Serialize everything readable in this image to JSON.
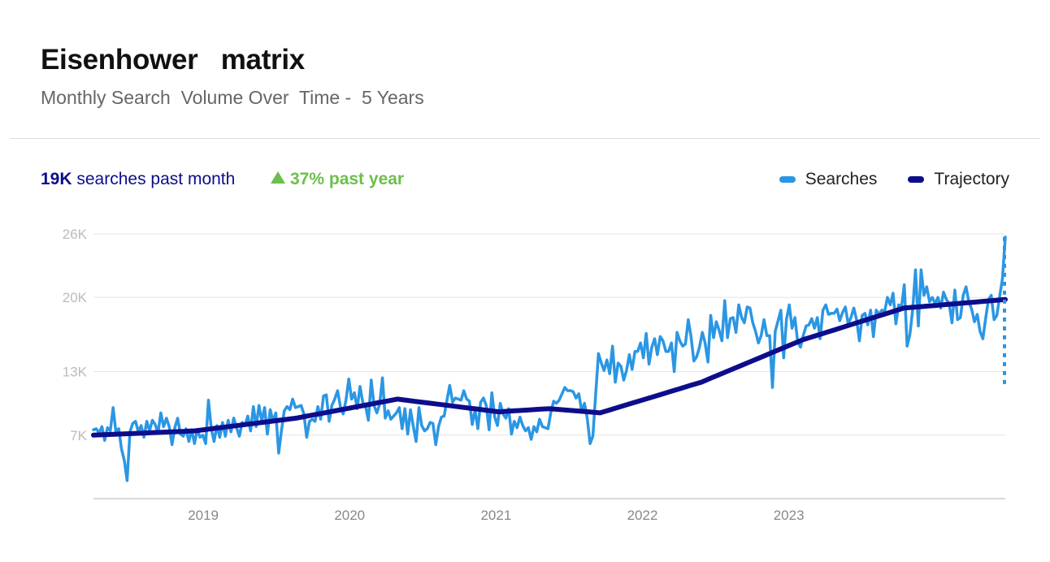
{
  "header": {
    "title": "Eisenhower   matrix",
    "subtitle": "Monthly Search  Volume Over  Time -  5 Years"
  },
  "stats": {
    "volume_value": "19K",
    "volume_label": "searches past month",
    "growth_value": "37%",
    "growth_label": "past year",
    "growth_icon": "triangle-up-icon"
  },
  "legend": {
    "searches": "Searches",
    "trajectory": "Trajectory"
  },
  "colors": {
    "searches": "#2b96e4",
    "trajectory": "#0d0d8c",
    "growth": "#6cbf4a",
    "grid": "#e6e6e6"
  },
  "chart_data": {
    "type": "line",
    "x_start": "2018-09",
    "x_step": "1 week",
    "x_ticks": [
      "2019",
      "2020",
      "2021",
      "2022",
      "2023"
    ],
    "y_ticks": [
      {
        "value": 7000,
        "label": "7K"
      },
      {
        "value": 13000,
        "label": "13K"
      },
      {
        "value": 20000,
        "label": "20K"
      },
      {
        "value": 26000,
        "label": "26K"
      }
    ],
    "ylim": [
      1000,
      26000
    ],
    "grid": true,
    "legend_position": "top-right",
    "series": [
      {
        "name": "Searches",
        "values": [
          7500,
          7600,
          7200,
          7800,
          6500,
          7700,
          7400,
          9600,
          7300,
          7600,
          5700,
          4600,
          2700,
          7300,
          8100,
          8300,
          7300,
          7900,
          6800,
          8300,
          7400,
          8400,
          8000,
          7200,
          9100,
          7800,
          8600,
          7800,
          6100,
          7700,
          8600,
          7100,
          6900,
          7600,
          6400,
          7500,
          6200,
          7500,
          6800,
          7000,
          6200,
          10300,
          7600,
          6400,
          7900,
          6800,
          8200,
          6900,
          8400,
          7300,
          8600,
          7700,
          6900,
          8200,
          7900,
          8800,
          7400,
          9700,
          7800,
          9800,
          8300,
          9600,
          7100,
          9400,
          8300,
          9100,
          5300,
          7400,
          9300,
          9700,
          9400,
          10400,
          9600,
          9700,
          9800,
          9000,
          6800,
          8300,
          8500,
          8300,
          9700,
          8500,
          10700,
          10800,
          8300,
          9800,
          10400,
          11200,
          9700,
          9000,
          10300,
          12300,
          10400,
          11000,
          9500,
          11600,
          10100,
          9700,
          8400,
          12200,
          9800,
          9100,
          9900,
          12400,
          8600,
          9300,
          8500,
          8800,
          9100,
          9600,
          7600,
          9500,
          7100,
          9400,
          7800,
          6400,
          9600,
          7900,
          7400,
          7600,
          8200,
          8100,
          6100,
          7800,
          8700,
          8800,
          10300,
          11700,
          10100,
          10500,
          10400,
          10300,
          11200,
          10400,
          10200,
          8000,
          9400,
          7600,
          10100,
          10500,
          9800,
          7500,
          11000,
          8700,
          7900,
          10000,
          9000,
          8600,
          9500,
          7100,
          8300,
          7700,
          8700,
          7900,
          7400,
          7700,
          6600,
          7800,
          7300,
          8500,
          7800,
          7700,
          7600,
          9100,
          10200,
          10000,
          10300,
          10900,
          11500,
          11200,
          11200,
          11100,
          10500,
          10900,
          9300,
          10000,
          8600,
          6200,
          6900,
          10900,
          14700,
          13800,
          13100,
          14100,
          12800,
          15400,
          12000,
          13800,
          13500,
          12200,
          13100,
          14600,
          13200,
          14900,
          14900,
          15700,
          14300,
          16600,
          13700,
          15300,
          16100,
          14600,
          16300,
          15900,
          14900,
          14900,
          15700,
          13000,
          16700,
          15900,
          15400,
          15600,
          17900,
          16300,
          14000,
          14400,
          15300,
          16700,
          15700,
          13900,
          18300,
          16200,
          17700,
          16900,
          15900,
          19700,
          16200,
          18000,
          18100,
          16700,
          19300,
          18100,
          17600,
          19100,
          19000,
          17600,
          16800,
          15700,
          16400,
          17900,
          16400,
          16400,
          11500,
          16800,
          17800,
          18800,
          14300,
          17900,
          19300,
          17100,
          18100,
          15800,
          15300,
          16400,
          17300,
          17400,
          18000,
          17100,
          18100,
          16100,
          18800,
          19300,
          18400,
          18500,
          18500,
          18900,
          17800,
          18600,
          19100,
          17500,
          18100,
          19000,
          17900,
          15900,
          18300,
          18500,
          17400,
          18800,
          16300,
          18800,
          18400,
          18800,
          18700,
          20000,
          19300,
          20400,
          17500,
          19300,
          19100,
          21200,
          15400,
          16500,
          18900,
          22600,
          17300,
          22600,
          20200,
          21000,
          19600,
          20000,
          19400,
          20000,
          19000,
          20500,
          19800,
          19400,
          17600,
          20700,
          17900,
          18100,
          20200,
          21000,
          19600,
          18900,
          17700,
          18400,
          16800,
          16100,
          18000,
          19800,
          20200,
          17900,
          18300,
          20100,
          21800,
          25700
        ],
        "line_style": "solid"
      },
      {
        "name": "Trajectory",
        "values": [
          7000,
          7040,
          7080,
          7120,
          7160,
          7200,
          7240,
          7280,
          7320,
          7360,
          7400,
          7520,
          7640,
          7760,
          7880,
          8000,
          8120,
          8240,
          8360,
          8480,
          8600,
          8780,
          8960,
          9140,
          9320,
          9500,
          9680,
          9860,
          10040,
          10220,
          10400,
          10280,
          10160,
          10040,
          9920,
          9800,
          9680,
          9560,
          9440,
          9320,
          9200,
          9260,
          9320,
          9380,
          9440,
          9500,
          9420,
          9340,
          9260,
          9180,
          9100,
          9390,
          9680,
          9970,
          10260,
          10550,
          10840,
          11130,
          11420,
          11710,
          12000,
          12400,
          12800,
          13200,
          13600,
          14000,
          14400,
          14800,
          15200,
          15600,
          16000,
          16300,
          16600,
          16900,
          17200,
          17500,
          17800,
          18100,
          18400,
          18700,
          19000,
          19080,
          19160,
          19240,
          19320,
          19400,
          19480,
          19560,
          19640,
          19720,
          19800
        ],
        "line_style": "solid"
      }
    ]
  }
}
